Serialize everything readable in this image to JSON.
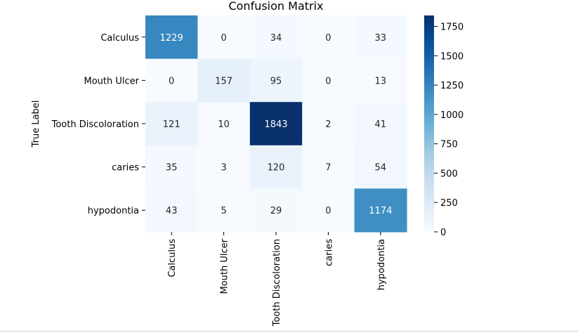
{
  "chart_data": {
    "type": "heatmap",
    "title": "Confusion Matrix",
    "ylabel": "True Label",
    "xlabel": "",
    "rows": [
      "Calculus",
      "Mouth Ulcer",
      "Tooth Discoloration",
      "caries",
      "hypodontia"
    ],
    "columns": [
      "Calculus",
      "Mouth Ulcer",
      "Tooth Discoloration",
      "caries",
      "hypodontia"
    ],
    "values": [
      [
        1229,
        0,
        34,
        0,
        33
      ],
      [
        0,
        157,
        95,
        0,
        13
      ],
      [
        121,
        10,
        1843,
        2,
        41
      ],
      [
        35,
        3,
        120,
        7,
        54
      ],
      [
        43,
        5,
        29,
        0,
        1174
      ]
    ],
    "colormap": "Blues",
    "colorbar": {
      "range": [
        0,
        1843
      ],
      "ticks": [
        0,
        250,
        500,
        750,
        1000,
        1250,
        1500,
        1750
      ]
    },
    "colors": {
      "low": "#f7fbff",
      "high": "#08306b"
    }
  }
}
